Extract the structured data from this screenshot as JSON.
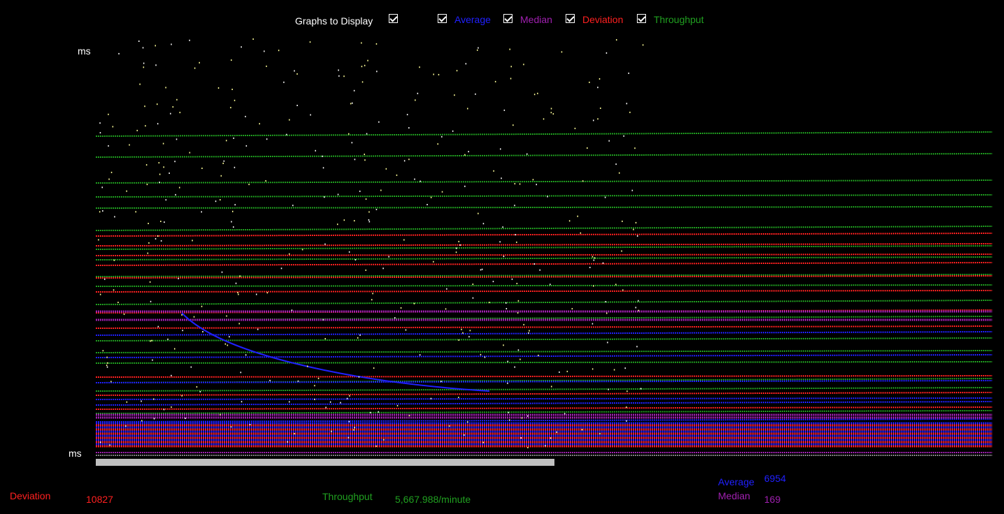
{
  "header": {
    "graphs_label": "Graphs to Display",
    "legend": [
      {
        "label": "Average",
        "color": "#2020ff",
        "checked": true
      },
      {
        "label": "Median",
        "color": "#a020b0",
        "checked": true
      },
      {
        "label": "Deviation",
        "color": "#ff2020",
        "checked": true
      },
      {
        "label": "Throughput",
        "color": "#20a020",
        "checked": true
      }
    ]
  },
  "axis": {
    "top_unit": "ms",
    "bottom_unit": "ms"
  },
  "stats": {
    "deviation_label": "Deviation",
    "deviation_value": "10827",
    "throughput_label": "Throughput",
    "throughput_value": "5,667.988/minute",
    "average_label": "Average",
    "average_value": "6954",
    "median_label": "Median",
    "median_value": "169"
  },
  "colors": {
    "average": "#2020ff",
    "median": "#a020b0",
    "deviation": "#ff2020",
    "throughput": "#20a020",
    "sample": "#ffff99"
  }
}
